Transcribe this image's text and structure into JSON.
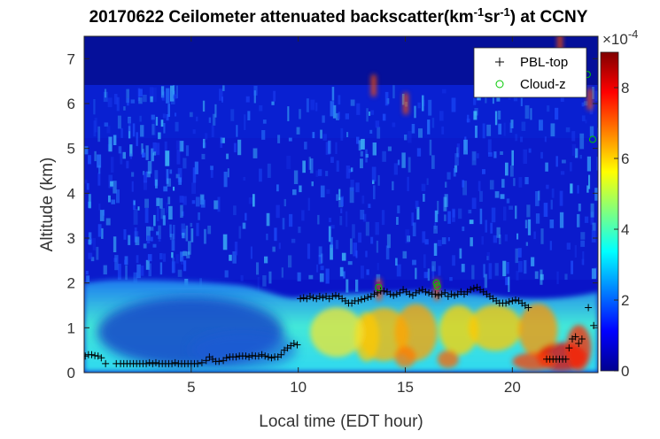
{
  "chart_data": {
    "type": "heatmap",
    "title_parts": {
      "prefix": "20170622 Ceilometer attenuated backscatter(km",
      "sup1": "-1",
      "mid": "sr",
      "sup2": "-1",
      "suffix": ") at CCNY"
    },
    "xlabel": "Local time (EDT hour)",
    "ylabel": "Altitude (km)",
    "xlim": [
      0,
      24
    ],
    "ylim": [
      0,
      7.5
    ],
    "xticks": [
      "5",
      "10",
      "15",
      "20"
    ],
    "xtick_values": [
      5,
      10,
      15,
      20
    ],
    "yticks": [
      "0",
      "1",
      "2",
      "3",
      "4",
      "5",
      "6",
      "7"
    ],
    "ytick_values": [
      0,
      1,
      2,
      3,
      4,
      5,
      6,
      7
    ],
    "colorbar": {
      "min": 0,
      "max": 9,
      "ticks": [
        "0",
        "2",
        "4",
        "6",
        "8"
      ],
      "tick_values": [
        0,
        2,
        4,
        6,
        8
      ],
      "exponent_base": "×10",
      "exponent_power": "-4",
      "colormap": "jet"
    },
    "legend": {
      "placement": "top-right",
      "entries": [
        {
          "label": "PBL-top",
          "marker": "+",
          "color": "#000000"
        },
        {
          "label": "Cloud-z",
          "marker": "o",
          "color": "#00c800"
        }
      ]
    },
    "series": [
      {
        "name": "PBL-top",
        "x": [
          0.05,
          0.2,
          0.35,
          0.5,
          0.65,
          0.8,
          1.0,
          1.5,
          1.7,
          1.85,
          2.0,
          2.15,
          2.3,
          2.45,
          2.6,
          2.75,
          2.9,
          3.05,
          3.2,
          3.35,
          3.5,
          3.65,
          3.8,
          3.95,
          4.1,
          4.25,
          4.4,
          4.55,
          4.7,
          4.85,
          5.0,
          5.15,
          5.3,
          5.5,
          5.7,
          5.85,
          6.0,
          6.15,
          6.3,
          6.5,
          6.65,
          6.8,
          6.95,
          7.1,
          7.25,
          7.4,
          7.55,
          7.7,
          7.85,
          8.0,
          8.15,
          8.3,
          8.45,
          8.6,
          8.75,
          8.9,
          9.05,
          9.2,
          9.35,
          9.5,
          9.65,
          9.8,
          9.95,
          10.1,
          10.25,
          10.4,
          10.55,
          10.7,
          10.85,
          11.0,
          11.15,
          11.3,
          11.45,
          11.6,
          11.75,
          11.9,
          12.05,
          12.2,
          12.35,
          12.5,
          12.65,
          12.8,
          12.95,
          13.1,
          13.25,
          13.4,
          13.55,
          13.7,
          13.85,
          14.0,
          14.15,
          14.3,
          14.45,
          14.6,
          14.75,
          14.9,
          15.05,
          15.2,
          15.35,
          15.5,
          15.65,
          15.8,
          15.95,
          16.1,
          16.25,
          16.4,
          16.55,
          16.7,
          16.85,
          17.0,
          17.15,
          17.3,
          17.45,
          17.6,
          17.75,
          17.9,
          18.05,
          18.2,
          18.35,
          18.5,
          18.65,
          18.8,
          18.95,
          19.1,
          19.25,
          19.4,
          19.55,
          19.7,
          19.85,
          20.0,
          20.15,
          20.3,
          20.45,
          20.6,
          20.75,
          21.6,
          21.75,
          21.9,
          22.05,
          22.2,
          22.35,
          22.5,
          22.65,
          22.8,
          22.95,
          23.1,
          23.25,
          23.55,
          23.8
        ],
        "y": [
          0.37,
          0.4,
          0.4,
          0.38,
          0.37,
          0.33,
          0.2,
          0.2,
          0.2,
          0.2,
          0.2,
          0.2,
          0.2,
          0.2,
          0.2,
          0.2,
          0.2,
          0.22,
          0.2,
          0.22,
          0.2,
          0.2,
          0.2,
          0.2,
          0.2,
          0.22,
          0.2,
          0.2,
          0.2,
          0.2,
          0.2,
          0.2,
          0.2,
          0.22,
          0.27,
          0.35,
          0.3,
          0.25,
          0.25,
          0.27,
          0.33,
          0.35,
          0.35,
          0.35,
          0.37,
          0.37,
          0.37,
          0.35,
          0.38,
          0.37,
          0.37,
          0.4,
          0.37,
          0.35,
          0.33,
          0.35,
          0.35,
          0.4,
          0.5,
          0.55,
          0.6,
          0.65,
          0.62,
          1.65,
          1.67,
          1.65,
          1.7,
          1.67,
          1.65,
          1.7,
          1.67,
          1.7,
          1.65,
          1.7,
          1.72,
          1.7,
          1.65,
          1.6,
          1.55,
          1.55,
          1.6,
          1.6,
          1.63,
          1.65,
          1.68,
          1.7,
          1.75,
          1.78,
          1.82,
          1.82,
          1.8,
          1.75,
          1.72,
          1.75,
          1.78,
          1.85,
          1.8,
          1.75,
          1.72,
          1.78,
          1.82,
          1.85,
          1.8,
          1.78,
          1.75,
          1.75,
          1.72,
          1.75,
          1.78,
          1.7,
          1.75,
          1.72,
          1.75,
          1.8,
          1.75,
          1.8,
          1.85,
          1.88,
          1.9,
          1.85,
          1.8,
          1.75,
          1.7,
          1.65,
          1.6,
          1.55,
          1.55,
          1.55,
          1.58,
          1.6,
          1.62,
          1.6,
          1.55,
          1.5,
          1.45,
          0.3,
          0.3,
          0.3,
          0.3,
          0.3,
          0.3,
          0.3,
          0.55,
          0.75,
          0.8,
          0.65,
          0.75,
          1.45,
          1.05
        ]
      },
      {
        "name": "Cloud-z",
        "x": [
          13.75,
          16.45,
          16.5,
          22.2,
          23.5,
          23.75
        ],
        "y": [
          1.9,
          2.0,
          1.93,
          6.7,
          6.65,
          5.2
        ]
      }
    ]
  }
}
